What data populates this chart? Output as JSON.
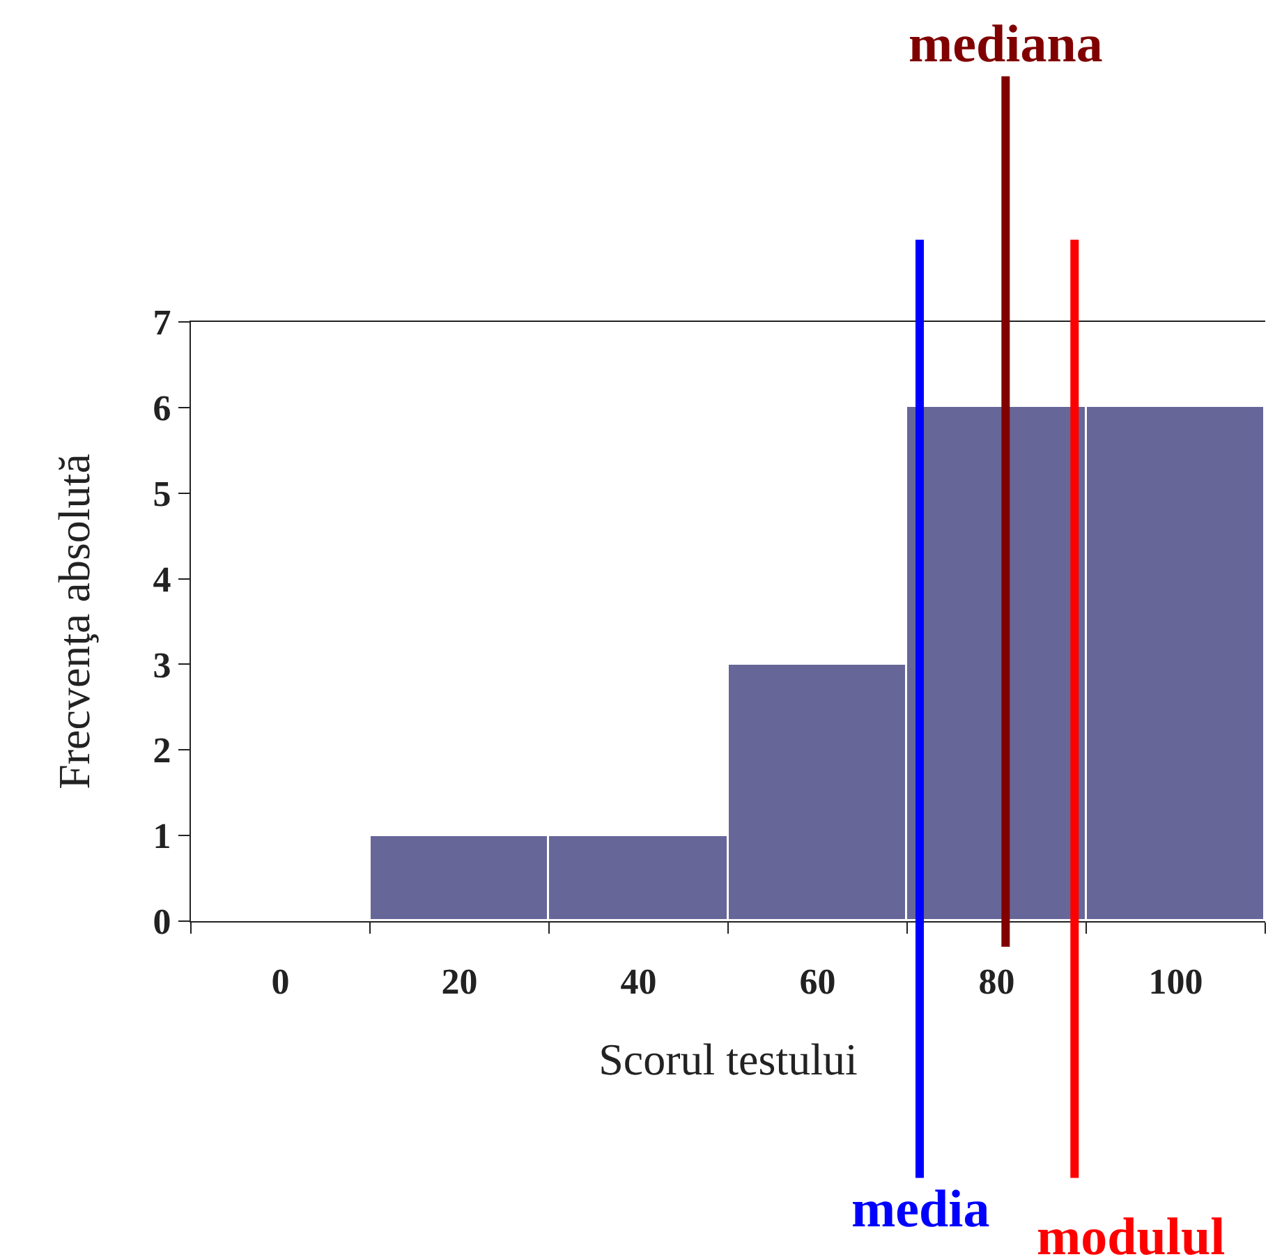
{
  "chart_data": {
    "type": "histogram",
    "xlabel": "Scorul testului",
    "ylabel": "Frecvenţa absolută",
    "bins": [
      -10,
      10,
      30,
      50,
      70,
      90,
      110
    ],
    "values": [
      0,
      1,
      1,
      3,
      6,
      6
    ],
    "color": "#666699",
    "xlim": [
      -10,
      110
    ],
    "xticks": [
      0,
      20,
      40,
      60,
      80,
      100
    ],
    "ylim": [
      0,
      7
    ],
    "yticks": [
      0,
      1,
      2,
      3,
      4,
      5,
      6,
      7
    ],
    "ref_lines": [
      {
        "axis": "x",
        "value": 71.4,
        "label": "media",
        "color": "#0000ff"
      },
      {
        "axis": "x",
        "value": 81,
        "label": "mediana",
        "color": "#800000"
      },
      {
        "axis": "x",
        "value": 88.7,
        "label": "modulul",
        "color": "#ff0000"
      }
    ]
  }
}
